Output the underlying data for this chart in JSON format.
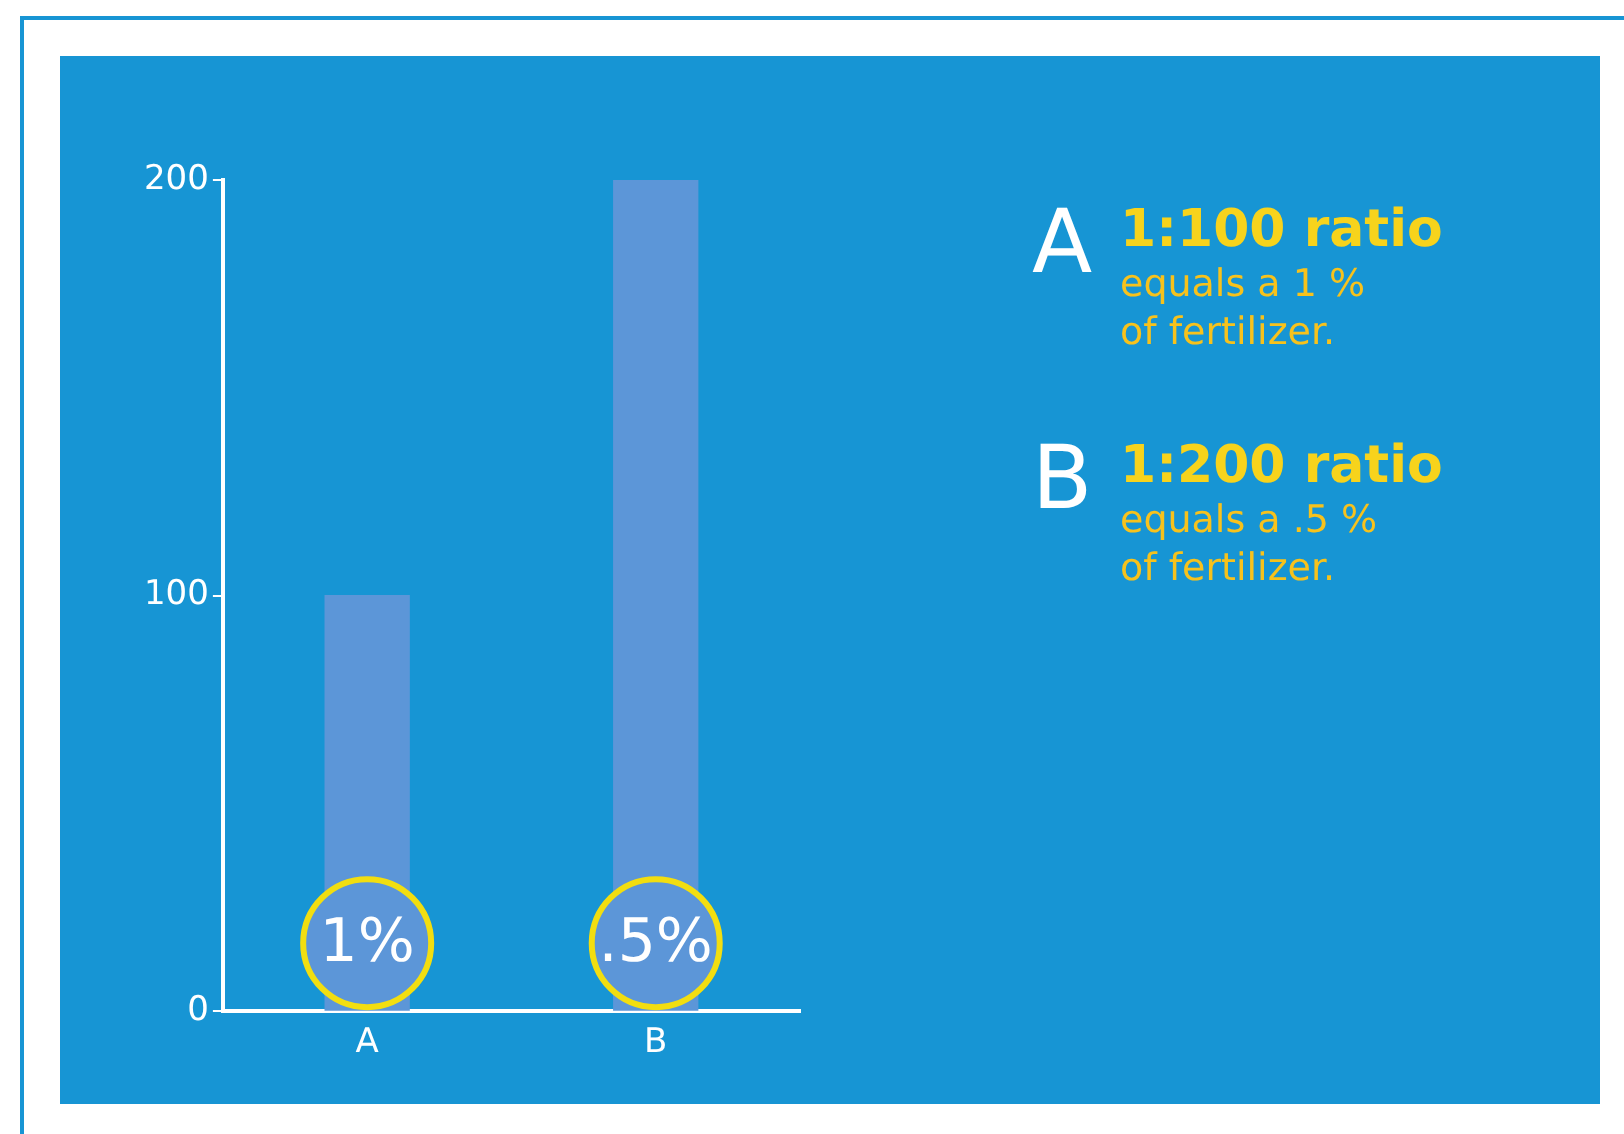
{
  "chart_data": {
    "type": "bar",
    "categories": [
      "A",
      "B"
    ],
    "values": [
      100,
      200
    ],
    "color": "#5c96d8",
    "ylim": [
      0,
      200
    ],
    "yticks": [
      0,
      100,
      200
    ],
    "grid": false,
    "legend": false,
    "annotations": [
      "1%",
      ".5%",
      "A",
      "1:100 ratio",
      "equals a 1 % of fertilizer.",
      "B",
      "1:200 ratio",
      "equals a .5 % of fertilizer."
    ]
  }
}
